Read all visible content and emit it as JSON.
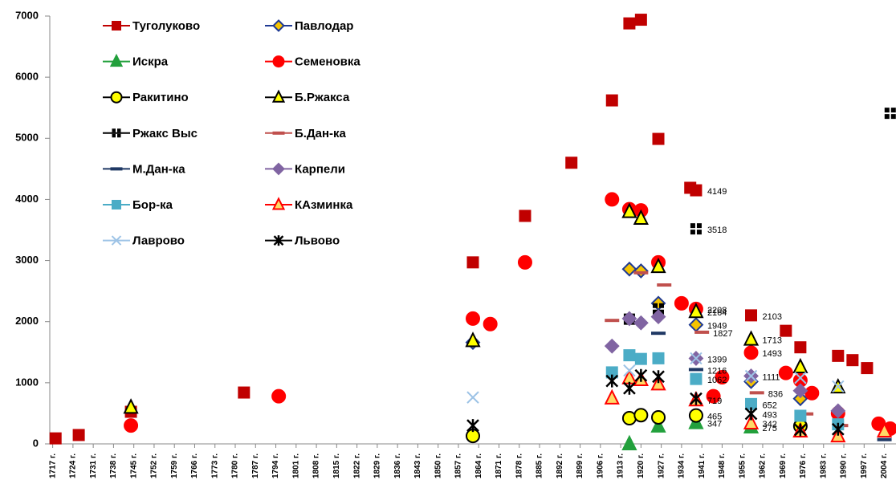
{
  "chart_data": {
    "type": "scatter",
    "xlim": [
      1716,
      2008
    ],
    "ylim": [
      0,
      7000
    ],
    "yticks": [
      0,
      1000,
      2000,
      3000,
      4000,
      5000,
      6000,
      7000
    ],
    "xticks": [
      {
        "value": 1717,
        "label": "1717 г."
      },
      {
        "value": 1724,
        "label": "1724 г."
      },
      {
        "value": 1731,
        "label": "1731 г."
      },
      {
        "value": 1738,
        "label": "1738 г."
      },
      {
        "value": 1745,
        "label": "1745 г."
      },
      {
        "value": 1752,
        "label": "1752 г."
      },
      {
        "value": 1759,
        "label": "1759 г."
      },
      {
        "value": 1766,
        "label": "1766 г."
      },
      {
        "value": 1773,
        "label": "1773 г."
      },
      {
        "value": 1780,
        "label": "1780 г."
      },
      {
        "value": 1787,
        "label": "1787 г."
      },
      {
        "value": 1794,
        "label": "1794 г."
      },
      {
        "value": 1801,
        "label": "1801 г."
      },
      {
        "value": 1808,
        "label": "1808 г."
      },
      {
        "value": 1815,
        "label": "1815 г."
      },
      {
        "value": 1822,
        "label": "1822 г."
      },
      {
        "value": 1829,
        "label": "1829 г."
      },
      {
        "value": 1836,
        "label": "1836 г."
      },
      {
        "value": 1843,
        "label": "1843 г."
      },
      {
        "value": 1850,
        "label": "1850 г."
      },
      {
        "value": 1857,
        "label": "1857 г."
      },
      {
        "value": 1864,
        "label": "1864 г."
      },
      {
        "value": 1871,
        "label": "1871 г."
      },
      {
        "value": 1878,
        "label": "1878 г."
      },
      {
        "value": 1885,
        "label": "1885 г."
      },
      {
        "value": 1892,
        "label": "1892 г."
      },
      {
        "value": 1899,
        "label": "1899 г."
      },
      {
        "value": 1906,
        "label": "1906 г."
      },
      {
        "value": 1913,
        "label": "1913 г."
      },
      {
        "value": 1920,
        "label": "1920 г."
      },
      {
        "value": 1927,
        "label": "1927 г."
      },
      {
        "value": 1934,
        "label": "1934 г."
      },
      {
        "value": 1941,
        "label": "1941 г."
      },
      {
        "value": 1948,
        "label": "1948 г."
      },
      {
        "value": 1955,
        "label": "1955 г."
      },
      {
        "value": 1962,
        "label": "1962 г."
      },
      {
        "value": 1969,
        "label": "1969 г."
      },
      {
        "value": 1976,
        "label": "1976 г."
      },
      {
        "value": 1983,
        "label": "1983 г."
      },
      {
        "value": 1990,
        "label": "1990 г."
      },
      {
        "value": 1997,
        "label": "1997 г."
      },
      {
        "value": 2004,
        "label": "2004 г."
      }
    ],
    "legend": "top-left",
    "series": [
      {
        "name": "Туголуково",
        "marker": "square",
        "color": "#c00000",
        "edgecolor": "#c00000",
        "x": [
          1718,
          1726,
          1744,
          1783,
          1862,
          1880,
          1896,
          1910,
          1916,
          1920,
          1926,
          1937,
          1939,
          1958,
          1970,
          1975,
          1988,
          1993,
          1998
        ],
        "values": [
          90,
          145,
          525,
          840,
          2970,
          3730,
          4600,
          5620,
          6880,
          6940,
          4990,
          4190,
          4149,
          2103,
          1850,
          1580,
          1440,
          1370,
          1240
        ],
        "value_labels": [
          null,
          null,
          null,
          null,
          null,
          null,
          null,
          null,
          null,
          null,
          null,
          null,
          "4149",
          "2103",
          null,
          null,
          null,
          null,
          null
        ]
      },
      {
        "name": "Павлодар",
        "marker": "diamond",
        "color": "#f5c400",
        "edgecolor": "#1f3a93",
        "x": [
          1862,
          1916,
          1920,
          1926,
          1939,
          1958,
          1975
        ],
        "values": [
          1660,
          2860,
          2830,
          2300,
          1949,
          1020,
          740
        ],
        "value_labels": [
          null,
          null,
          null,
          null,
          "1949",
          null,
          null
        ]
      },
      {
        "name": "Искра",
        "marker": "triangle",
        "color": "#22a03c",
        "edgecolor": "#22a03c",
        "x": [
          1916,
          1926,
          1939,
          1958
        ],
        "values": [
          0,
          290,
          347,
          275
        ],
        "value_labels": [
          null,
          null,
          "347",
          "275"
        ]
      },
      {
        "name": "Семеновка",
        "marker": "circle",
        "color": "#ff0000",
        "edgecolor": "#ff0000",
        "x": [
          1744,
          1795,
          1862,
          1868,
          1880,
          1910,
          1916,
          1920,
          1926,
          1934,
          1939,
          1945,
          1948,
          1958,
          1970,
          1975,
          1979,
          1988,
          2002,
          2006
        ],
        "values": [
          300,
          780,
          2050,
          1960,
          2970,
          4000,
          3840,
          3820,
          2970,
          2300,
          2208,
          780,
          1090,
          1493,
          1160,
          1040,
          830,
          500,
          330,
          250
        ],
        "value_labels": [
          null,
          null,
          null,
          null,
          null,
          null,
          null,
          null,
          null,
          null,
          "2208",
          null,
          null,
          "1493",
          null,
          null,
          null,
          null,
          null,
          null
        ]
      },
      {
        "name": "Ракитино",
        "marker": "circle",
        "color": "#ffff00",
        "edgecolor": "#000000",
        "x": [
          1862,
          1916,
          1920,
          1926,
          1939,
          1975
        ],
        "values": [
          130,
          420,
          470,
          434,
          465,
          290
        ],
        "value_labels": [
          null,
          null,
          null,
          null,
          "465",
          null
        ]
      },
      {
        "name": "Б.Ржакса",
        "marker": "triangle",
        "color": "#ffff00",
        "edgecolor": "#000000",
        "x": [
          1744,
          1862,
          1916,
          1920,
          1926,
          1939,
          1958,
          1975,
          1988
        ],
        "values": [
          600,
          1690,
          3800,
          3690,
          2900,
          2164,
          1713,
          1260,
          930
        ],
        "value_labels": [
          null,
          null,
          null,
          null,
          null,
          "2164",
          "1713",
          null,
          null
        ]
      },
      {
        "name": "Ржакс Выс",
        "marker": "quad",
        "color": "#000000",
        "edgecolor": "#000000",
        "x": [
          1916,
          1926,
          1939,
          2006
        ],
        "values": [
          2040,
          2210,
          3518,
          5410
        ],
        "value_labels": [
          null,
          null,
          "3518",
          null
        ]
      },
      {
        "name": "Б.Дан-ка",
        "marker": "dash",
        "color": "#c0504d",
        "edgecolor": "#c0504d",
        "x": [
          1910,
          1920,
          1928,
          1941,
          1960,
          1977,
          1989
        ],
        "values": [
          2020,
          2800,
          2600,
          1827,
          836,
          490,
          300
        ],
        "value_labels": [
          null,
          null,
          null,
          "1827",
          "836",
          null,
          null
        ]
      },
      {
        "name": "М.Дан-ка",
        "marker": "dash",
        "color": "#1f3864",
        "edgecolor": "#1f3864",
        "x": [
          1926,
          1939,
          2004
        ],
        "values": [
          1810,
          1216,
          70
        ],
        "value_labels": [
          null,
          "1216",
          null
        ]
      },
      {
        "name": "Карпели",
        "marker": "diamond",
        "color": "#8064a2",
        "edgecolor": "#8064a2",
        "x": [
          1910,
          1916,
          1920,
          1926,
          1939,
          1958,
          1975,
          1988
        ],
        "values": [
          1600,
          2050,
          1980,
          2080,
          1399,
          1111,
          870,
          540
        ],
        "value_labels": [
          null,
          null,
          null,
          null,
          "1399",
          "1111",
          null,
          null
        ]
      },
      {
        "name": "Бор-ка",
        "marker": "square",
        "color": "#4bacc6",
        "edgecolor": "#4bacc6",
        "x": [
          1910,
          1916,
          1920,
          1926,
          1939,
          1958,
          1975,
          1988
        ],
        "values": [
          1170,
          1450,
          1390,
          1400,
          1062,
          652,
          460,
          320
        ],
        "value_labels": [
          null,
          null,
          null,
          null,
          "1062",
          "652",
          null,
          null
        ]
      },
      {
        "name": "КАзминка",
        "marker": "triangle",
        "color": "#ffd966",
        "edgecolor": "#ff0000",
        "x": [
          1910,
          1916,
          1920,
          1926,
          1939,
          1958,
          1975,
          1988,
          2004
        ],
        "values": [
          750,
          1080,
          1050,
          980,
          719,
          342,
          210,
          130,
          210
        ],
        "value_labels": [
          null,
          null,
          null,
          null,
          "719",
          "342",
          null,
          null,
          null
        ]
      },
      {
        "name": "Лаврово",
        "marker": "x",
        "color": "#9dc3e6",
        "edgecolor": "#9dc3e6",
        "x": [
          1862,
          1916,
          1939,
          1958,
          1975,
          1988
        ],
        "values": [
          760,
          1200,
          1400,
          1110,
          1080,
          940
        ]
      },
      {
        "name": "Львово",
        "marker": "star",
        "color": "#000000",
        "edgecolor": "#000000",
        "x": [
          1862,
          1910,
          1916,
          1920,
          1926,
          1939,
          1958,
          1975,
          1988
        ],
        "values": [
          300,
          1030,
          910,
          1120,
          1100,
          740,
          493,
          230,
          240
        ],
        "value_labels": [
          null,
          null,
          null,
          null,
          null,
          null,
          "493",
          null,
          null
        ]
      }
    ]
  }
}
